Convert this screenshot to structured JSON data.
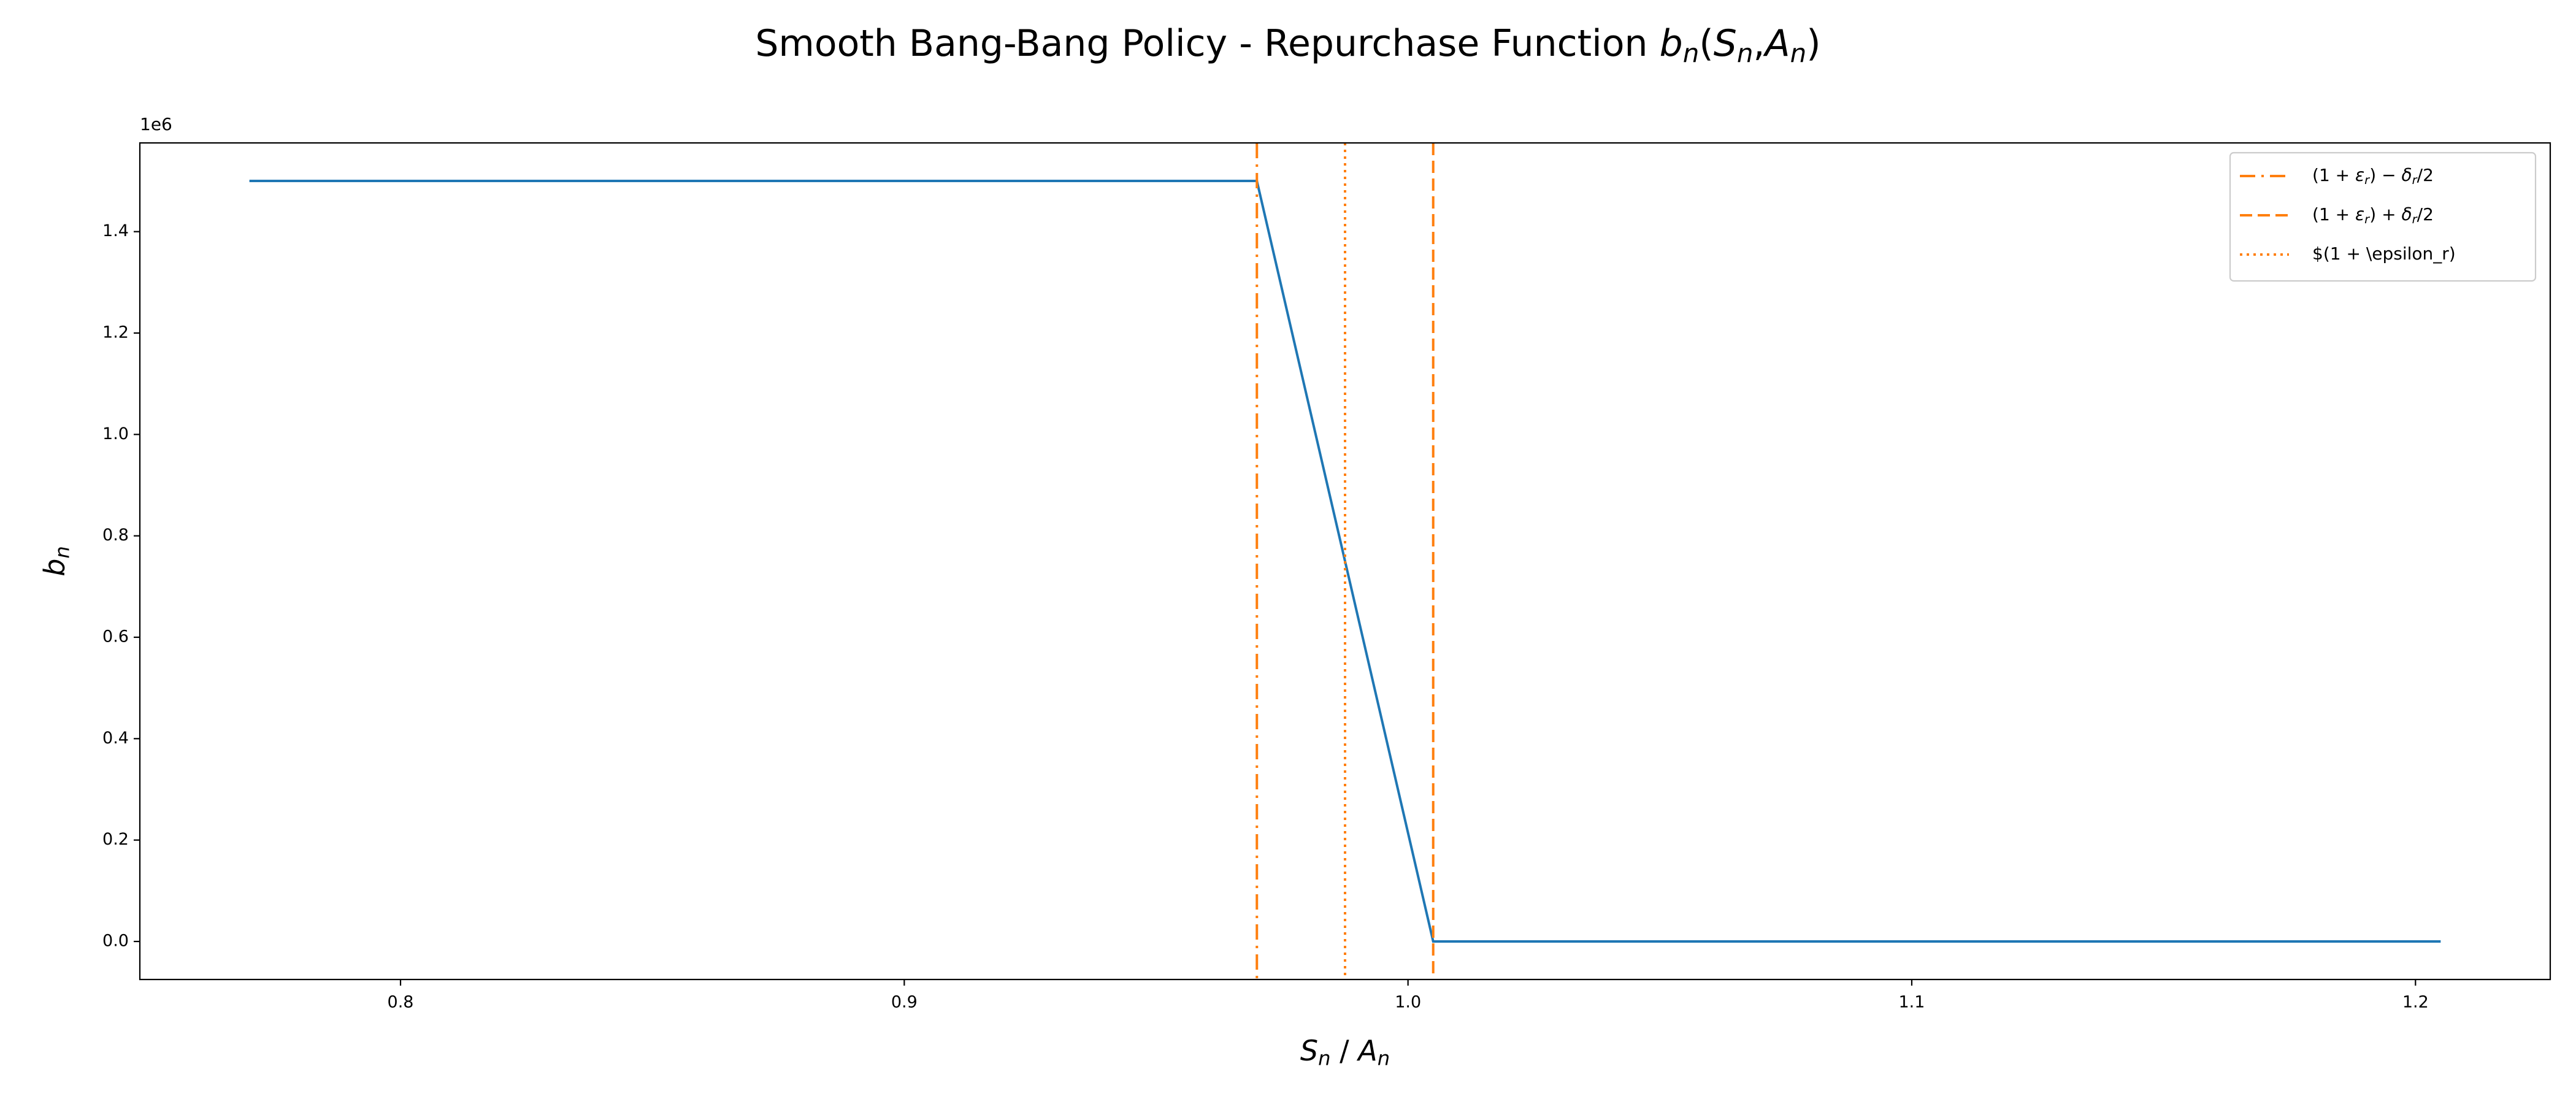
{
  "chart_data": {
    "type": "line",
    "title": "Smooth Bang-Bang Policy - Repurchase Function $b_n(S_n, A_n)$",
    "xlabel": "$S_n$ / $A_n$",
    "ylabel": "$b_n$",
    "y_offset_text": "1e6",
    "series": [
      {
        "name": "b_n",
        "color": "#1f77b4",
        "x": [
          0.77,
          0.97,
          1.005,
          1.205
        ],
        "values": [
          1500000,
          1500000,
          0,
          0
        ]
      }
    ],
    "vlines": [
      {
        "name": "$(1 + \\varepsilon_r) - \\delta_r / 2$",
        "x": 0.97,
        "color": "#ff7f0e",
        "style": "dashdot"
      },
      {
        "name": "$(1 + \\varepsilon_r) + \\delta_r / 2$",
        "x": 1.005,
        "color": "#ff7f0e",
        "style": "dashed"
      },
      {
        "name": "$(1 + \\epsilon_r)",
        "x": 0.9875,
        "color": "#ff7f0e",
        "style": "dotted"
      }
    ],
    "xlim": [
      0.74825,
      1.22675
    ],
    "ylim": [
      -75000,
      1575000
    ],
    "xticks": [
      0.8,
      0.9,
      {
        "value": 1,
        "label": "1.0"
      },
      1.1,
      1.2
    ],
    "yticks": [
      {
        "value": 0,
        "label": "0.0"
      },
      {
        "value": 200000,
        "label": "0.2"
      },
      {
        "value": 400000,
        "label": "0.4"
      },
      {
        "value": 600000,
        "label": "0.6"
      },
      {
        "value": 800000,
        "label": "0.8"
      },
      {
        "value": 1000000,
        "label": "1.0"
      },
      {
        "value": 1200000,
        "label": "1.2"
      },
      {
        "value": 1400000,
        "label": "1.4"
      }
    ],
    "legend": "upper right",
    "grid": false
  }
}
